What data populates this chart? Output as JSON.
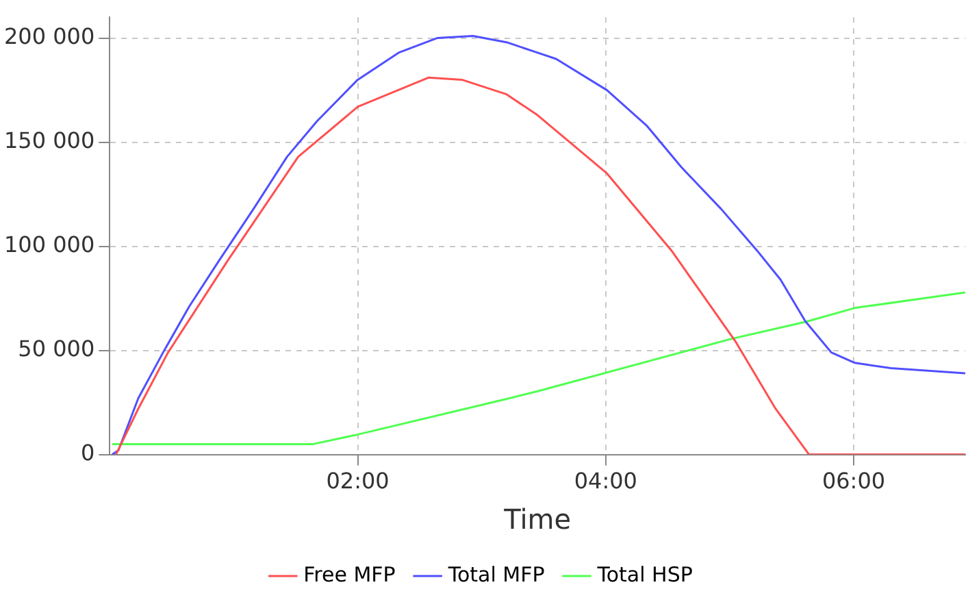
{
  "chart_data": {
    "type": "line",
    "xlabel": "Time",
    "xlim": [
      0,
      6.9
    ],
    "xticks": [
      {
        "value": 2,
        "label": "02:00"
      },
      {
        "value": 4,
        "label": "04:00"
      },
      {
        "value": 6,
        "label": "06:00"
      }
    ],
    "ylim": [
      0,
      210000
    ],
    "yticks": [
      0,
      {
        "value": 50000,
        "label": "50 000"
      },
      {
        "value": 100000,
        "label": "100 000"
      },
      {
        "value": 150000,
        "label": "150 000"
      },
      {
        "value": 200000,
        "label": "200 000"
      }
    ],
    "grid": true,
    "legend": "bottom",
    "marker": "none",
    "line_style": "solid",
    "series": [
      {
        "name": "Free MFP",
        "color": "#ff5050",
        "x": [
          0.05,
          0.23,
          0.47,
          0.95,
          1.52,
          2.0,
          2.57,
          2.84,
          3.2,
          3.45,
          4.01,
          4.53,
          5.05,
          5.37,
          5.64,
          6.9
        ],
        "values": [
          0,
          22000,
          49000,
          93000,
          143000,
          167000,
          181000,
          180000,
          173000,
          163000,
          135000,
          98000,
          54000,
          22000,
          0,
          0
        ]
      },
      {
        "name": "Total MFP",
        "color": "#5050ff",
        "x": [
          0.02,
          0.07,
          0.23,
          0.43,
          0.64,
          0.88,
          1.16,
          1.43,
          1.67,
          2.0,
          2.33,
          2.64,
          2.93,
          3.2,
          3.45,
          3.6,
          4.01,
          4.33,
          4.61,
          4.93,
          5.22,
          5.41,
          5.61,
          5.82,
          6.01,
          6.3,
          6.9
        ],
        "values": [
          0,
          2000,
          27000,
          49000,
          71000,
          93000,
          118000,
          143000,
          160000,
          180000,
          193000,
          200000,
          201000,
          198000,
          193000,
          190000,
          175000,
          158000,
          138000,
          118000,
          98000,
          84000,
          64000,
          49000,
          44000,
          41500,
          39000
        ]
      },
      {
        "name": "Total HSP",
        "color": "#50ff50",
        "x": [
          0.02,
          1.64,
          2.0,
          3.2,
          3.45,
          5.01,
          5.61,
          6.01,
          6.9
        ],
        "values": [
          5000,
          5000,
          9600,
          26700,
          30400,
          55500,
          63700,
          70400,
          77800
        ]
      }
    ]
  }
}
